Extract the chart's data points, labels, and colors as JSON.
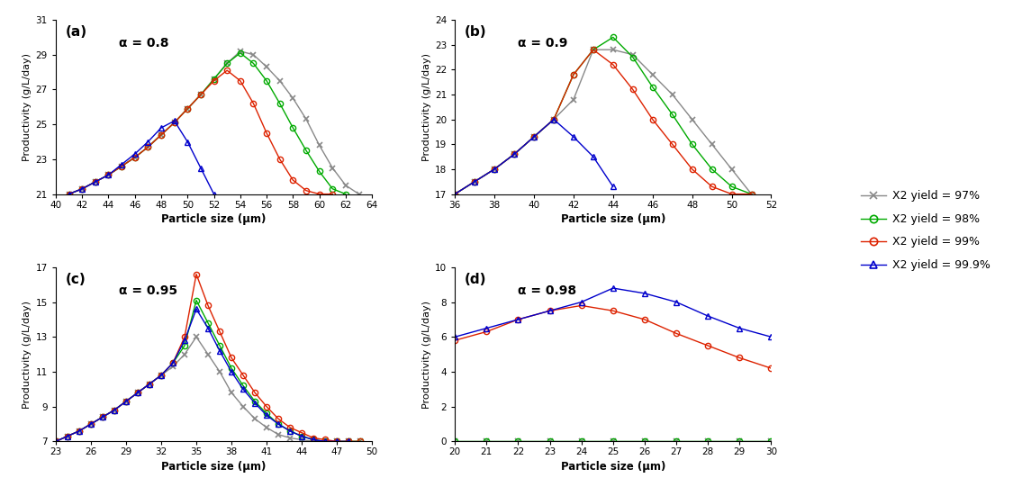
{
  "panels": [
    {
      "label": "(a)",
      "alpha_text": "α = 0.8",
      "xlim": [
        40,
        64
      ],
      "xticks": [
        40,
        42,
        44,
        46,
        48,
        50,
        52,
        54,
        56,
        58,
        60,
        62,
        64
      ],
      "ylim": [
        21,
        31
      ],
      "yticks": [
        21,
        23,
        25,
        27,
        29,
        31
      ],
      "series": [
        {
          "label": "X2 yield = 97%",
          "color": "#888888",
          "marker": "x",
          "x": [
            41,
            42,
            43,
            44,
            45,
            46,
            47,
            48,
            49,
            50,
            51,
            52,
            53,
            54,
            55,
            56,
            57,
            58,
            59,
            60,
            61,
            62,
            63
          ],
          "y": [
            21.0,
            21.3,
            21.7,
            22.1,
            22.6,
            23.1,
            23.7,
            24.4,
            25.1,
            25.9,
            26.7,
            27.6,
            28.5,
            29.2,
            29.0,
            28.3,
            27.5,
            26.5,
            25.3,
            23.8,
            22.5,
            21.5,
            21.0
          ]
        },
        {
          "label": "X2 yield = 98%",
          "color": "#00aa00",
          "marker": "o",
          "x": [
            41,
            42,
            43,
            44,
            45,
            46,
            47,
            48,
            49,
            50,
            51,
            52,
            53,
            54,
            55,
            56,
            57,
            58,
            59,
            60,
            61,
            62
          ],
          "y": [
            21.0,
            21.3,
            21.7,
            22.1,
            22.6,
            23.1,
            23.7,
            24.4,
            25.1,
            25.9,
            26.7,
            27.6,
            28.5,
            29.1,
            28.5,
            27.5,
            26.2,
            24.8,
            23.5,
            22.3,
            21.3,
            21.0
          ]
        },
        {
          "label": "X2 yield = 99%",
          "color": "#dd2200",
          "marker": "o",
          "x": [
            41,
            42,
            43,
            44,
            45,
            46,
            47,
            48,
            49,
            50,
            51,
            52,
            53,
            54,
            55,
            56,
            57,
            58,
            59,
            60,
            61
          ],
          "y": [
            21.0,
            21.3,
            21.7,
            22.1,
            22.6,
            23.1,
            23.7,
            24.4,
            25.1,
            25.9,
            26.7,
            27.5,
            28.1,
            27.5,
            26.2,
            24.5,
            23.0,
            21.8,
            21.2,
            21.0,
            21.0
          ]
        },
        {
          "label": "X2 yield = 99.9%",
          "color": "#0000cc",
          "marker": "^",
          "x": [
            41,
            42,
            43,
            44,
            45,
            46,
            47,
            48,
            49,
            50,
            51,
            52
          ],
          "y": [
            21.0,
            21.3,
            21.7,
            22.1,
            22.7,
            23.3,
            24.0,
            24.8,
            25.2,
            24.0,
            22.5,
            21.0
          ]
        }
      ]
    },
    {
      "label": "(b)",
      "alpha_text": "α = 0.9",
      "xlim": [
        36,
        52
      ],
      "xticks": [
        36,
        38,
        40,
        42,
        44,
        46,
        48,
        50,
        52
      ],
      "ylim": [
        17,
        24
      ],
      "yticks": [
        17,
        18,
        19,
        20,
        21,
        22,
        23,
        24
      ],
      "series": [
        {
          "label": "X2 yield = 97%",
          "color": "#888888",
          "marker": "x",
          "x": [
            36,
            37,
            38,
            39,
            40,
            41,
            42,
            43,
            44,
            45,
            46,
            47,
            48,
            49,
            50,
            51
          ],
          "y": [
            17.0,
            17.5,
            18.0,
            18.6,
            19.3,
            20.0,
            20.8,
            22.8,
            22.8,
            22.6,
            21.8,
            21.0,
            20.0,
            19.0,
            18.0,
            17.0
          ]
        },
        {
          "label": "X2 yield = 98%",
          "color": "#00aa00",
          "marker": "o",
          "x": [
            36,
            37,
            38,
            39,
            40,
            41,
            42,
            43,
            44,
            45,
            46,
            47,
            48,
            49,
            50,
            51
          ],
          "y": [
            17.0,
            17.5,
            18.0,
            18.6,
            19.3,
            20.0,
            21.8,
            22.8,
            23.3,
            22.5,
            21.3,
            20.2,
            19.0,
            18.0,
            17.3,
            17.0
          ]
        },
        {
          "label": "X2 yield = 99%",
          "color": "#dd2200",
          "marker": "o",
          "x": [
            36,
            37,
            38,
            39,
            40,
            41,
            42,
            43,
            44,
            45,
            46,
            47,
            48,
            49,
            50,
            51
          ],
          "y": [
            17.0,
            17.5,
            18.0,
            18.6,
            19.3,
            20.0,
            21.8,
            22.8,
            22.2,
            21.2,
            20.0,
            19.0,
            18.0,
            17.3,
            17.0,
            17.0
          ]
        },
        {
          "label": "X2 yield = 99.9%",
          "color": "#0000cc",
          "marker": "^",
          "x": [
            36,
            37,
            38,
            39,
            40,
            41,
            42,
            43,
            44
          ],
          "y": [
            17.0,
            17.5,
            18.0,
            18.6,
            19.3,
            20.0,
            19.3,
            18.5,
            17.3
          ]
        }
      ]
    },
    {
      "label": "(c)",
      "alpha_text": "α = 0.95",
      "xlim": [
        23,
        50
      ],
      "xticks": [
        23,
        26,
        29,
        32,
        35,
        38,
        41,
        44,
        47,
        50
      ],
      "ylim": [
        7,
        17
      ],
      "yticks": [
        7,
        9,
        11,
        13,
        15,
        17
      ],
      "series": [
        {
          "label": "X2 yield = 97%",
          "color": "#888888",
          "marker": "x",
          "x": [
            23,
            24,
            25,
            26,
            27,
            28,
            29,
            30,
            31,
            32,
            33,
            34,
            35,
            36,
            37,
            38,
            39,
            40,
            41,
            42,
            43,
            44,
            45,
            46,
            47,
            48,
            49
          ],
          "y": [
            7.0,
            7.3,
            7.6,
            8.0,
            8.4,
            8.8,
            9.3,
            9.8,
            10.3,
            10.8,
            11.3,
            12.0,
            13.0,
            12.0,
            11.0,
            9.8,
            9.0,
            8.3,
            7.8,
            7.4,
            7.2,
            7.1,
            7.0,
            7.0,
            7.0,
            7.0,
            7.0
          ]
        },
        {
          "label": "X2 yield = 98%",
          "color": "#00aa00",
          "marker": "o",
          "x": [
            23,
            24,
            25,
            26,
            27,
            28,
            29,
            30,
            31,
            32,
            33,
            34,
            35,
            36,
            37,
            38,
            39,
            40,
            41,
            42,
            43,
            44,
            45,
            46,
            47,
            48,
            49
          ],
          "y": [
            7.0,
            7.3,
            7.6,
            8.0,
            8.4,
            8.8,
            9.3,
            9.8,
            10.3,
            10.8,
            11.5,
            12.5,
            15.1,
            13.8,
            12.5,
            11.2,
            10.2,
            9.3,
            8.6,
            8.0,
            7.6,
            7.3,
            7.1,
            7.0,
            7.0,
            7.0,
            7.0
          ]
        },
        {
          "label": "X2 yield = 99%",
          "color": "#dd2200",
          "marker": "o",
          "x": [
            23,
            24,
            25,
            26,
            27,
            28,
            29,
            30,
            31,
            32,
            33,
            34,
            35,
            36,
            37,
            38,
            39,
            40,
            41,
            42,
            43,
            44,
            45,
            46,
            47,
            48,
            49
          ],
          "y": [
            7.0,
            7.3,
            7.6,
            8.0,
            8.4,
            8.8,
            9.3,
            9.8,
            10.3,
            10.8,
            11.5,
            13.0,
            16.6,
            14.8,
            13.3,
            11.8,
            10.8,
            9.8,
            9.0,
            8.3,
            7.8,
            7.5,
            7.2,
            7.1,
            7.0,
            7.0,
            7.0
          ]
        },
        {
          "label": "X2 yield = 99.9%",
          "color": "#0000cc",
          "marker": "^",
          "x": [
            23,
            24,
            25,
            26,
            27,
            28,
            29,
            30,
            31,
            32,
            33,
            34,
            35,
            36,
            37,
            38,
            39,
            40,
            41,
            42,
            43,
            44,
            45,
            46,
            47,
            48
          ],
          "y": [
            7.0,
            7.3,
            7.6,
            8.0,
            8.4,
            8.8,
            9.3,
            9.8,
            10.3,
            10.8,
            11.5,
            12.8,
            14.6,
            13.5,
            12.2,
            11.0,
            10.0,
            9.2,
            8.5,
            8.0,
            7.6,
            7.3,
            7.1,
            7.0,
            7.0,
            7.0
          ]
        }
      ]
    },
    {
      "label": "(d)",
      "alpha_text": "α = 0.98",
      "xlim": [
        20,
        30
      ],
      "xticks": [
        20,
        21,
        22,
        23,
        24,
        25,
        26,
        27,
        28,
        29,
        30
      ],
      "ylim": [
        0,
        10
      ],
      "yticks": [
        0,
        2,
        4,
        6,
        8,
        10
      ],
      "series": [
        {
          "label": "X2 yield = 97%",
          "color": "#888888",
          "marker": "x",
          "x": [
            20,
            21,
            22,
            23,
            24,
            25,
            26,
            27,
            28,
            29,
            30
          ],
          "y": [
            0.0,
            0.0,
            0.0,
            0.0,
            0.0,
            0.0,
            0.0,
            0.0,
            0.0,
            0.0,
            0.0
          ]
        },
        {
          "label": "X2 yield = 98%",
          "color": "#00aa00",
          "marker": "o",
          "x": [
            20,
            21,
            22,
            23,
            24,
            25,
            26,
            27,
            28,
            29,
            30
          ],
          "y": [
            0.0,
            0.0,
            0.0,
            0.0,
            0.0,
            0.0,
            0.0,
            0.0,
            0.0,
            0.0,
            0.0
          ]
        },
        {
          "label": "X2 yield = 99%",
          "color": "#dd2200",
          "marker": "o",
          "x": [
            20,
            21,
            22,
            23,
            24,
            25,
            26,
            27,
            28,
            29,
            30
          ],
          "y": [
            5.8,
            6.3,
            7.0,
            7.5,
            7.8,
            7.5,
            7.0,
            6.2,
            5.5,
            4.8,
            4.2
          ]
        },
        {
          "label": "X2 yield = 99.9%",
          "color": "#0000cc",
          "marker": "^",
          "x": [
            20,
            21,
            22,
            23,
            24,
            25,
            26,
            27,
            28,
            29,
            30
          ],
          "y": [
            6.0,
            6.5,
            7.0,
            7.5,
            8.0,
            8.8,
            8.5,
            8.0,
            7.2,
            6.5,
            6.0
          ]
        }
      ]
    }
  ],
  "legend_entries": [
    {
      "label": "X2 yield = 97%",
      "color": "#888888",
      "marker": "x"
    },
    {
      "label": "X2 yield = 98%",
      "color": "#00aa00",
      "marker": "o"
    },
    {
      "label": "X2 yield = 99%",
      "color": "#dd2200",
      "marker": "o"
    },
    {
      "label": "X2 yield = 99.9%",
      "color": "#0000cc",
      "marker": "^"
    }
  ],
  "ylabel": "Productivity (g/L/day)",
  "xlabel": "Particle size (μm)"
}
